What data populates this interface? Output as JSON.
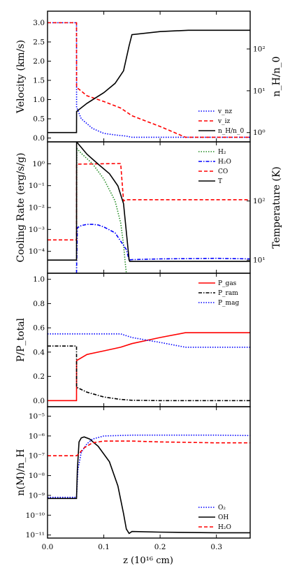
{
  "figure": {
    "xlabel": "z (10¹⁶ cm)",
    "xticks": [
      "0.0",
      "0.1",
      "0.2",
      "0.3"
    ]
  },
  "chart_data": [
    {
      "type": "line",
      "ylabel": "Velocity (km/s)",
      "ylabel_right": "n_H/n_0",
      "xlim": [
        0,
        0.36
      ],
      "ylim": [
        -0.1,
        3.3
      ],
      "y2scale": "log",
      "y2lim": [
        0.6,
        800
      ],
      "yticks": [
        "0.0",
        "0.5",
        "1.0",
        "1.5",
        "2.0",
        "2.5",
        "3.0"
      ],
      "y2ticks": [
        "10⁰",
        "10¹",
        "10²"
      ],
      "legend_loc": "lower-right",
      "series": [
        {
          "name": "v_nz",
          "color": "#0000ff",
          "dash": "dotted",
          "axis": "left",
          "x": [
            0,
            0.0515,
            0.0516,
            0.06,
            0.08,
            0.1,
            0.12,
            0.14,
            0.15,
            0.36
          ],
          "y": [
            3.0,
            3.0,
            0.8,
            0.5,
            0.25,
            0.12,
            0.08,
            0.05,
            0.02,
            0.02
          ]
        },
        {
          "name": "v_iz",
          "color": "#ff0000",
          "dash": "dashed",
          "axis": "left",
          "x": [
            0,
            0.0515,
            0.0516,
            0.07,
            0.1,
            0.13,
            0.15,
            0.2,
            0.245,
            0.36
          ],
          "y": [
            3.0,
            3.0,
            1.32,
            1.1,
            0.95,
            0.78,
            0.58,
            0.3,
            0.02,
            0.02
          ]
        },
        {
          "name": "n_H/n_0",
          "color": "#000000",
          "dash": "solid",
          "axis": "right",
          "x": [
            0,
            0.0515,
            0.0516,
            0.07,
            0.1,
            0.12,
            0.135,
            0.145,
            0.15,
            0.2,
            0.25,
            0.36
          ],
          "y": [
            1.0,
            1.0,
            3.2,
            5.0,
            9.0,
            15,
            30,
            120,
            220,
            260,
            280,
            280
          ]
        }
      ]
    },
    {
      "type": "line",
      "ylabel": "Cooling Rate (erg/s/g)",
      "ylabel_right": "Temperature (K)",
      "yscale": "log",
      "ylim": [
        1e-05,
        10
      ],
      "yticks": [
        "10⁻⁴",
        "10⁻³",
        "10⁻²",
        "10⁻¹",
        "10⁰"
      ],
      "y2scale": "log",
      "y2lim": [
        6,
        1000
      ],
      "y2ticks": [
        "10¹",
        "10²"
      ],
      "legend_loc": "top-right",
      "series": [
        {
          "name": "H₂",
          "color": "#228b22",
          "dash": "dotted",
          "axis": "left",
          "x": [
            0.0515,
            0.052,
            0.06,
            0.08,
            0.1,
            0.12,
            0.13,
            0.135,
            0.138,
            0.14
          ],
          "y": [
            1e-05,
            5.0,
            3.0,
            1.0,
            0.2,
            0.02,
            0.002,
            0.0002,
            3e-05,
            1e-05
          ]
        },
        {
          "name": "H₂O",
          "color": "#0000ff",
          "dash": "dashdot",
          "axis": "left",
          "x": [
            0.0515,
            0.053,
            0.06,
            0.07,
            0.08,
            0.09,
            0.1,
            0.12,
            0.14,
            0.145,
            0.15,
            0.2,
            0.3,
            0.36
          ],
          "y": [
            1e-05,
            0.0012,
            0.0015,
            0.0017,
            0.0017,
            0.0016,
            0.0013,
            0.0007,
            0.00012,
            4e-05,
            4.2e-05,
            4.5e-05,
            4.8e-05,
            4.5e-05
          ]
        },
        {
          "name": "CO",
          "color": "#ff0000",
          "dash": "dashed",
          "axis": "right",
          "x": [
            0,
            0.0515,
            0.0516,
            0.13,
            0.135,
            0.14,
            0.36
          ],
          "y": [
            22,
            22,
            420,
            430,
            100,
            105,
            105
          ]
        },
        {
          "name": "T",
          "color": "#000000",
          "dash": "solid",
          "axis": "right",
          "x": [
            0,
            0.0515,
            0.0516,
            0.07,
            0.09,
            0.11,
            0.125,
            0.135,
            0.14,
            0.145,
            0.146,
            0.36
          ],
          "y": [
            10,
            10,
            1000,
            620,
            420,
            290,
            180,
            90,
            30,
            10,
            9.5,
            9.5
          ]
        }
      ]
    },
    {
      "type": "line",
      "ylabel": "P/P_total",
      "ylim": [
        -0.05,
        1.05
      ],
      "yticks": [
        "0.0",
        "0.2",
        "0.4",
        "0.6",
        "0.8",
        "1.0"
      ],
      "legend_loc": "top-right",
      "series": [
        {
          "name": "P_gas",
          "color": "#ff0000",
          "dash": "solid",
          "x": [
            0,
            0.0515,
            0.0516,
            0.07,
            0.1,
            0.13,
            0.15,
            0.2,
            0.245,
            0.36
          ],
          "y": [
            0.0,
            0.0,
            0.33,
            0.38,
            0.41,
            0.44,
            0.47,
            0.52,
            0.56,
            0.56
          ]
        },
        {
          "name": "P_ram",
          "color": "#000000",
          "dash": "dashdot",
          "x": [
            0,
            0.0515,
            0.0516,
            0.07,
            0.1,
            0.13,
            0.15,
            0.2,
            0.36
          ],
          "y": [
            0.45,
            0.45,
            0.11,
            0.07,
            0.03,
            0.01,
            0.003,
            0.0,
            0.0
          ]
        },
        {
          "name": "P_mag",
          "color": "#0000ff",
          "dash": "dotted",
          "x": [
            0,
            0.13,
            0.15,
            0.2,
            0.245,
            0.36
          ],
          "y": [
            0.55,
            0.55,
            0.52,
            0.48,
            0.44,
            0.44
          ]
        }
      ]
    },
    {
      "type": "line",
      "ylabel": "n(M)/n_H",
      "yscale": "log",
      "ylim": [
        7e-12,
        3e-05
      ],
      "yticks": [
        "10⁻¹¹",
        "10⁻¹⁰",
        "10⁻⁹",
        "10⁻⁸",
        "10⁻⁷",
        "10⁻⁶",
        "10⁻⁵"
      ],
      "legend_loc": "lower-right",
      "series": [
        {
          "name": "O₂",
          "color": "#0000ff",
          "dash": "dotted",
          "x": [
            0,
            0.0515,
            0.054,
            0.06,
            0.07,
            0.08,
            0.1,
            0.15,
            0.2,
            0.3,
            0.36
          ],
          "y": [
            8e-10,
            8e-10,
            2e-08,
            1.5e-07,
            4e-07,
            7e-07,
            1e-06,
            1.1e-06,
            1.1e-06,
            1.1e-06,
            1.05e-06
          ]
        },
        {
          "name": "OH",
          "color": "#000000",
          "dash": "solid",
          "x": [
            0,
            0.0515,
            0.053,
            0.056,
            0.06,
            0.065,
            0.075,
            0.09,
            0.11,
            0.125,
            0.135,
            0.14,
            0.145,
            0.15,
            0.2,
            0.3,
            0.36
          ],
          "y": [
            7e-10,
            7e-10,
            2e-08,
            5e-07,
            8e-07,
            9e-07,
            7e-07,
            3e-07,
            5e-08,
            3e-09,
            1.2e-10,
            2e-11,
            1.2e-11,
            1.5e-11,
            1.4e-11,
            1.3e-11,
            1.3e-11
          ]
        },
        {
          "name": "H₂O",
          "color": "#ff0000",
          "dash": "dashed",
          "x": [
            0,
            0.0515,
            0.055,
            0.065,
            0.08,
            0.1,
            0.15,
            0.2,
            0.3,
            0.36
          ],
          "y": [
            1e-07,
            1e-07,
            1.2e-07,
            2.5e-07,
            4.5e-07,
            5.5e-07,
            5.5e-07,
            5e-07,
            4.5e-07,
            4.5e-07
          ]
        }
      ]
    }
  ]
}
